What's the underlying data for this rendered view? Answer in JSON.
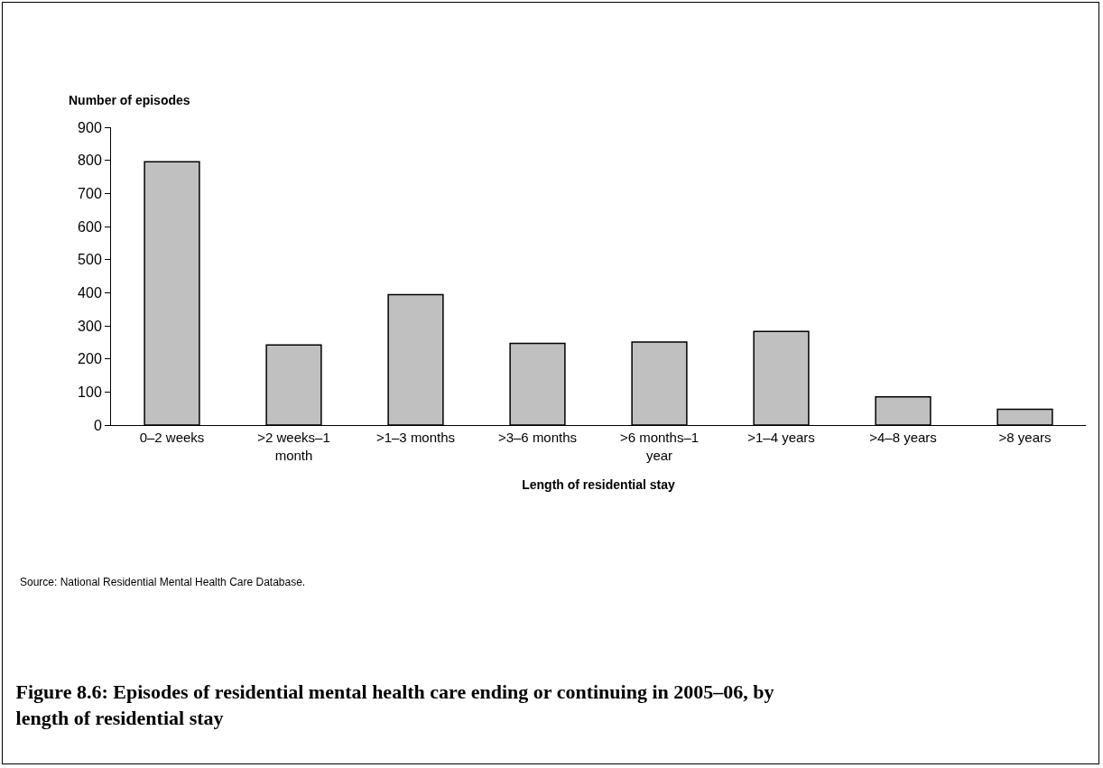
{
  "chart_data": {
    "type": "bar",
    "title": "Figure 8.6: Episodes of residential mental health care ending or continuing in 2005–06, by length of residential stay",
    "xlabel": "Length of residential stay",
    "ylabel": "Number of episodes",
    "categories": [
      "0–2 weeks",
      ">2 weeks–1 month",
      ">1–3 months",
      ">3–6 months",
      ">6 months–1 year",
      ">1–4 years",
      ">4–8 years",
      ">8 years"
    ],
    "values": [
      796,
      242,
      394,
      247,
      251,
      283,
      85,
      48
    ],
    "color": "#c0c0c0",
    "ylim": [
      0,
      900
    ],
    "yticks": [
      0,
      100,
      200,
      300,
      400,
      500,
      600,
      700,
      800,
      900
    ],
    "grid": false,
    "annotations": [
      "Source: National Residential Mental Health Care Database."
    ]
  }
}
